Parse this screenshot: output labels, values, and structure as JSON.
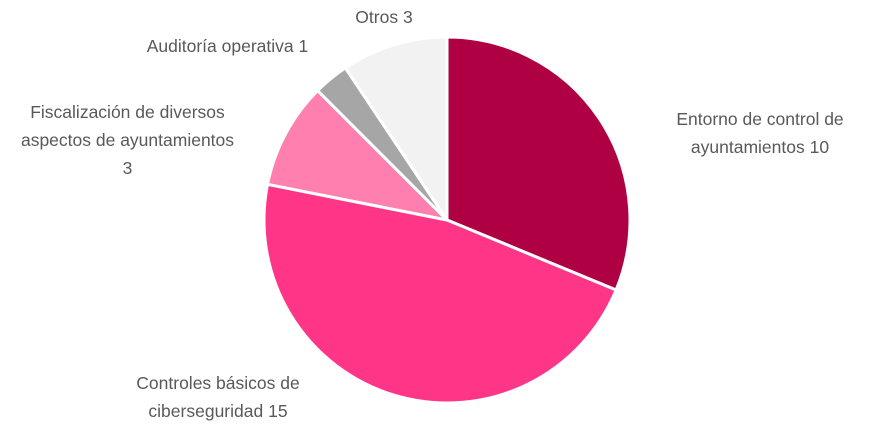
{
  "chart_data": {
    "type": "pie",
    "categories": [
      "Entorno de control de ayuntamientos",
      "Controles básicos de ciberseguridad",
      "Fiscalización de diversos aspectos de ayuntamientos",
      "Auditoría operativa",
      "Otros"
    ],
    "values": [
      10,
      15,
      3,
      1,
      3
    ],
    "colors": [
      "#ae0042",
      "#ff3687",
      "#ff80ae",
      "#a6a6a6",
      "#f2f2f2"
    ]
  }
}
